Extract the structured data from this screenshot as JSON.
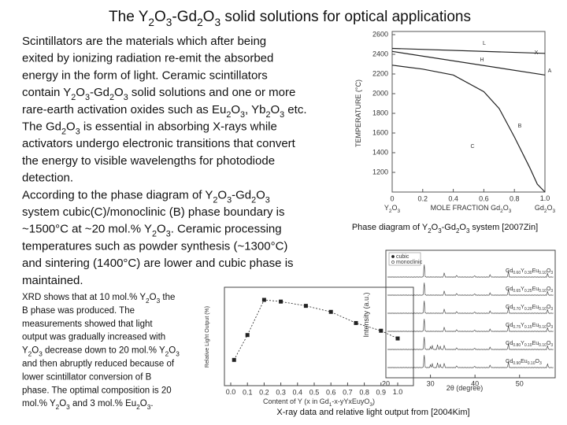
{
  "title": "The Y2O3-Gd2O3 solid solutions for optical applications",
  "body": {
    "lines": [
      "Scintillators  are the materials which after being",
      "exited by ionizing radiation re-emit  the absorbed",
      "energy in the form of light. Ceramic scintillators",
      "contain Y2O3-Gd2O3 solid solutions and one or more",
      "rare-earth activation oxides such as Eu2O3, Yb2O3 etc.",
      "The Gd2O3 is essential in absorbing X-rays while",
      "activators undergo electronic transitions that convert",
      "the energy to visible wavelengths for photodiode",
      "detection.",
      "According to the phase diagram of Y2O3-Gd2O3",
      "system cubic(C)/monoclinic (B) phase boundary is",
      "~1500°C at ~20 mol.% Y2O3. Ceramic processing",
      "temperatures such as powder synthesis (~1300°C)",
      "and sintering (1400°C) are lower and cubic phase is",
      "maintained."
    ]
  },
  "notes": {
    "lines": [
      "XRD shows that at 10 mol.% Y2O3 the",
      "B phase was produced.  The",
      "measurements showed that light",
      "output was gradually increased with",
      "Y2O3 decrease  down to 20 mol.% Y2O3",
      "and then abruptly reduced because of",
      "lower scintillator conversion of B",
      "phase. The optimal composition is 20",
      "mol.% Y2O3 and 3 mol.% Eu2O3."
    ]
  },
  "phase_diagram": {
    "type": "line",
    "ylabel": "TEMPERATURE (°C)",
    "xlabel": "MOLE FRACTION Gd2O3",
    "x_left_label": "Y2O3",
    "x_right_label": "Gd2O3",
    "region_labels": [
      "L",
      "X",
      "H",
      "A",
      "B",
      "C"
    ],
    "xlim": [
      0,
      1
    ],
    "ylim": [
      1000,
      2600
    ],
    "xticks": [
      0,
      0.2,
      0.4,
      0.6,
      0.8,
      {
        "value": 1,
        "label": "1.0"
      }
    ],
    "yticks": [
      1200,
      1400,
      1600,
      1800,
      2000,
      2200,
      2400,
      2600
    ],
    "series": [
      {
        "color": "#222222",
        "x": [
          0,
          1
        ],
        "values": [
          2460,
          2410
        ]
      },
      {
        "color": "#222222",
        "x": [
          0,
          1
        ],
        "values": [
          2430,
          2190
        ]
      },
      {
        "color": "#222222",
        "x": [
          0,
          0.2,
          0.4,
          0.6,
          0.7,
          0.8,
          0.9,
          0.95,
          1
        ],
        "values": [
          2290,
          2250,
          2190,
          2020,
          1850,
          1560,
          1250,
          1080,
          1000
        ]
      }
    ],
    "caption": "Phase diagram of Y2O3-Gd2O3 system [2007Zin]"
  },
  "light_output": {
    "type": "line",
    "ylabel": "Relative Light Output (%)",
    "xlabel": "Content of Y (x in Gd1-x-yYxEuyO3)",
    "xlim": [
      0,
      1
    ],
    "ylim": [
      0,
      100
    ],
    "xticks": [
      {
        "value": 0,
        "label": "0.0"
      },
      0.1,
      0.2,
      0.3,
      0.4,
      0.5,
      0.6,
      0.7,
      0.8,
      0.9,
      {
        "value": 1,
        "label": "1.0"
      }
    ],
    "x": [
      0.02,
      0.1,
      0.2,
      0.3,
      0.45,
      0.6,
      0.75,
      0.9,
      1
    ],
    "values": [
      30,
      59,
      100,
      98,
      93,
      86,
      73,
      64,
      55
    ],
    "color": "#222222"
  },
  "xrd": {
    "ylabel": "Intensity (a.u.)",
    "xlabel": "2θ (degree)",
    "legend": [
      "cubic",
      "monoclinic"
    ],
    "curve_labels": [
      "Gd0.60Y0.30Eu0.10O3",
      "Gd0.65Y0.25Eu0.10O3",
      "Gd0.70Y0.20Eu0.10O3",
      "Gd0.75Y0.15Eu0.10O3",
      "Gd0.80Y0.10Eu0.10O3",
      "Gd0.90Eu0.10O3"
    ],
    "xlim": [
      20,
      58
    ],
    "xticks": [
      20,
      30,
      40,
      50
    ]
  },
  "caption": "X-ray data and relative light output from [2004Kim]"
}
